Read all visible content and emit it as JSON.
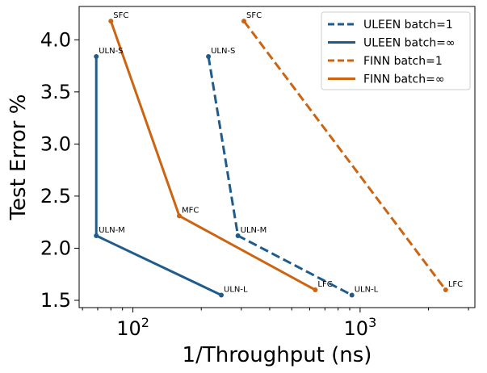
{
  "chart_data": {
    "type": "line",
    "xlabel": "1/Throughput (ns)",
    "ylabel": "Test Error %",
    "xscale": "log",
    "xlim": [
      58,
      3200
    ],
    "ylim": [
      1.43,
      4.32
    ],
    "x_ticks": [
      {
        "value": 100,
        "base": "10",
        "exp": "2"
      },
      {
        "value": 1000,
        "base": "10",
        "exp": "3"
      }
    ],
    "y_ticks": [
      1.5,
      2.0,
      2.5,
      3.0,
      3.5,
      4.0
    ],
    "y_tick_labels": [
      "1.5",
      "2.0",
      "2.5",
      "3.0",
      "3.5",
      "4.0"
    ],
    "legend_position": "top-right",
    "series": [
      {
        "name": "ULEEN batch=1",
        "color": "#1f5c8b",
        "dash": "dashed",
        "points": [
          {
            "x": 215,
            "y": 3.84,
            "label": "ULN-S"
          },
          {
            "x": 290,
            "y": 2.12,
            "label": "ULN-M"
          },
          {
            "x": 920,
            "y": 1.55,
            "label": "ULN-L"
          }
        ]
      },
      {
        "name": "ULEEN batch=∞",
        "color": "#1f5c8b",
        "dash": "solid",
        "points": [
          {
            "x": 69,
            "y": 3.84,
            "label": "ULN-S"
          },
          {
            "x": 69,
            "y": 2.12,
            "label": "ULN-M"
          },
          {
            "x": 245,
            "y": 1.55,
            "label": "ULN-L"
          }
        ]
      },
      {
        "name": "FINN batch=1",
        "color": "#cc6411",
        "dash": "dashed",
        "points": [
          {
            "x": 308,
            "y": 4.18,
            "label": "SFC"
          },
          {
            "x": 2380,
            "y": 1.6,
            "label": "LFC"
          }
        ]
      },
      {
        "name": "FINN batch=∞",
        "color": "#cc6411",
        "dash": "solid",
        "points": [
          {
            "x": 80,
            "y": 4.18,
            "label": "SFC"
          },
          {
            "x": 160,
            "y": 2.31,
            "label": "MFC"
          },
          {
            "x": 635,
            "y": 1.6,
            "label": "LFC"
          }
        ]
      }
    ]
  }
}
